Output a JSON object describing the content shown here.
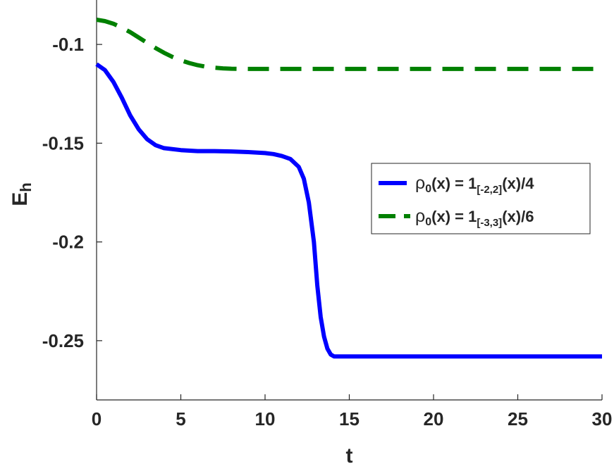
{
  "chart_data": {
    "type": "line",
    "title": "",
    "xlabel": "t",
    "ylabel_main": "E",
    "ylabel_sub": "h",
    "xlim": [
      0,
      30
    ],
    "ylim": [
      -0.28,
      -0.0775
    ],
    "xticks": [
      0,
      5,
      10,
      15,
      20,
      25,
      30
    ],
    "xtick_labels": [
      "0",
      "5",
      "10",
      "15",
      "20",
      "25",
      "30"
    ],
    "yticks": [
      -0.25,
      -0.2,
      -0.15,
      -0.1
    ],
    "ytick_labels": [
      "-0.25",
      "-0.2",
      "-0.15",
      "-0.1"
    ],
    "grid": false,
    "legend_position": "right",
    "series": [
      {
        "name_parts": {
          "rho": "ρ",
          "sub0": "0",
          "mid": "(x) = 1",
          "sub": "[-2,2]",
          "tail": "(x)/4"
        },
        "color": "#0000ff",
        "style": "solid",
        "x": [
          0,
          0.5,
          1,
          1.5,
          2,
          2.5,
          3,
          3.5,
          4,
          5,
          6,
          7,
          8,
          9,
          10,
          10.5,
          11,
          11.5,
          12,
          12.3,
          12.6,
          12.9,
          13.1,
          13.3,
          13.5,
          13.7,
          13.9,
          14.1,
          14.5,
          15,
          20,
          25,
          30
        ],
        "y": [
          -0.11,
          -0.113,
          -0.119,
          -0.127,
          -0.136,
          -0.143,
          -0.148,
          -0.151,
          -0.1525,
          -0.1535,
          -0.154,
          -0.154,
          -0.1542,
          -0.1545,
          -0.155,
          -0.1555,
          -0.1565,
          -0.158,
          -0.162,
          -0.168,
          -0.18,
          -0.2,
          -0.222,
          -0.238,
          -0.248,
          -0.254,
          -0.257,
          -0.258,
          -0.258,
          -0.258,
          -0.258,
          -0.258,
          -0.258
        ]
      },
      {
        "name_parts": {
          "rho": "ρ",
          "sub0": "0",
          "mid": "(x) = 1",
          "sub": "[-3,3]",
          "tail": "(x)/6"
        },
        "color": "#008000",
        "style": "dashed",
        "x": [
          0,
          0.5,
          1,
          1.5,
          2,
          2.5,
          3,
          3.5,
          4,
          4.5,
          5,
          5.5,
          6,
          6.5,
          7,
          7.5,
          8,
          9,
          10,
          15,
          20,
          25,
          30
        ],
        "y": [
          -0.0875,
          -0.0882,
          -0.0895,
          -0.0915,
          -0.0938,
          -0.0965,
          -0.0992,
          -0.1018,
          -0.1042,
          -0.1063,
          -0.108,
          -0.1094,
          -0.1105,
          -0.1113,
          -0.1118,
          -0.1121,
          -0.1123,
          -0.1124,
          -0.1124,
          -0.1124,
          -0.1124,
          -0.1124,
          -0.1124
        ]
      }
    ]
  }
}
